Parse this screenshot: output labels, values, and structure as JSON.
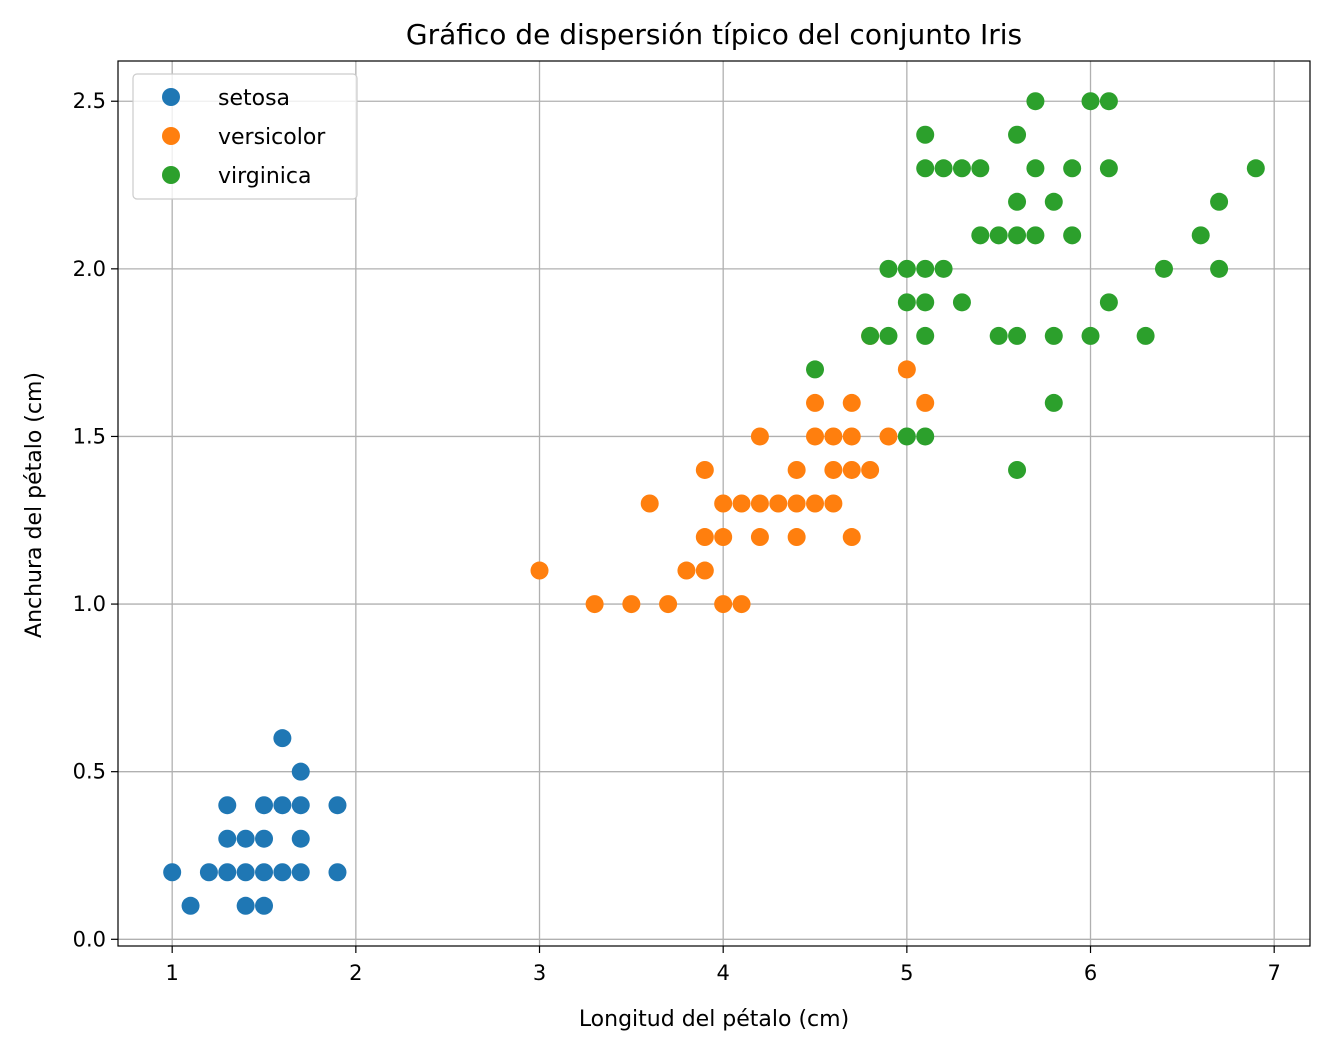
{
  "chart_data": {
    "type": "scatter",
    "title": "Gráfico de dispersión típico del conjunto Iris",
    "xlabel": "Longitud del pétalo (cm)",
    "ylabel": "Anchura del pétalo (cm)",
    "xlim": [
      0.705,
      7.195
    ],
    "ylim": [
      -0.02,
      2.62
    ],
    "xticks": [
      1,
      2,
      3,
      4,
      5,
      6,
      7
    ],
    "xtick_labels": [
      "1",
      "2",
      "3",
      "4",
      "5",
      "6",
      "7"
    ],
    "yticks": [
      0.0,
      0.5,
      1.0,
      1.5,
      2.0,
      2.5
    ],
    "ytick_labels": [
      "0.0",
      "0.5",
      "1.0",
      "1.5",
      "2.0",
      "2.5"
    ],
    "grid": true,
    "legend_position": "top-left",
    "series": [
      {
        "name": "setosa",
        "color": "#1f77b4",
        "points": [
          [
            1.0,
            0.2
          ],
          [
            1.1,
            0.1
          ],
          [
            1.2,
            0.2
          ],
          [
            1.3,
            0.2
          ],
          [
            1.3,
            0.3
          ],
          [
            1.3,
            0.4
          ],
          [
            1.4,
            0.1
          ],
          [
            1.4,
            0.2
          ],
          [
            1.4,
            0.3
          ],
          [
            1.5,
            0.1
          ],
          [
            1.5,
            0.2
          ],
          [
            1.5,
            0.3
          ],
          [
            1.5,
            0.4
          ],
          [
            1.6,
            0.2
          ],
          [
            1.6,
            0.4
          ],
          [
            1.6,
            0.6
          ],
          [
            1.7,
            0.2
          ],
          [
            1.7,
            0.3
          ],
          [
            1.7,
            0.4
          ],
          [
            1.7,
            0.5
          ],
          [
            1.9,
            0.2
          ],
          [
            1.9,
            0.4
          ]
        ]
      },
      {
        "name": "versicolor",
        "color": "#ff7f0e",
        "points": [
          [
            3.0,
            1.1
          ],
          [
            3.3,
            1.0
          ],
          [
            3.5,
            1.0
          ],
          [
            3.6,
            1.3
          ],
          [
            3.7,
            1.0
          ],
          [
            3.8,
            1.1
          ],
          [
            3.9,
            1.1
          ],
          [
            3.9,
            1.2
          ],
          [
            3.9,
            1.4
          ],
          [
            4.0,
            1.0
          ],
          [
            4.0,
            1.2
          ],
          [
            4.0,
            1.3
          ],
          [
            4.1,
            1.0
          ],
          [
            4.1,
            1.3
          ],
          [
            4.2,
            1.2
          ],
          [
            4.2,
            1.3
          ],
          [
            4.2,
            1.5
          ],
          [
            4.3,
            1.3
          ],
          [
            4.4,
            1.2
          ],
          [
            4.4,
            1.3
          ],
          [
            4.4,
            1.4
          ],
          [
            4.5,
            1.3
          ],
          [
            4.5,
            1.5
          ],
          [
            4.5,
            1.6
          ],
          [
            4.6,
            1.3
          ],
          [
            4.6,
            1.4
          ],
          [
            4.6,
            1.5
          ],
          [
            4.7,
            1.2
          ],
          [
            4.7,
            1.4
          ],
          [
            4.7,
            1.5
          ],
          [
            4.7,
            1.6
          ],
          [
            4.8,
            1.4
          ],
          [
            4.8,
            1.8
          ],
          [
            4.9,
            1.5
          ],
          [
            5.0,
            1.7
          ],
          [
            5.1,
            1.6
          ]
        ]
      },
      {
        "name": "virginica",
        "color": "#2ca02c",
        "points": [
          [
            4.5,
            1.7
          ],
          [
            4.8,
            1.8
          ],
          [
            4.9,
            1.8
          ],
          [
            4.9,
            2.0
          ],
          [
            5.0,
            1.5
          ],
          [
            5.0,
            1.9
          ],
          [
            5.0,
            2.0
          ],
          [
            5.1,
            1.5
          ],
          [
            5.1,
            1.8
          ],
          [
            5.1,
            1.9
          ],
          [
            5.1,
            2.0
          ],
          [
            5.1,
            2.3
          ],
          [
            5.1,
            2.4
          ],
          [
            5.2,
            2.0
          ],
          [
            5.2,
            2.3
          ],
          [
            5.3,
            1.9
          ],
          [
            5.3,
            2.3
          ],
          [
            5.4,
            2.1
          ],
          [
            5.4,
            2.3
          ],
          [
            5.5,
            1.8
          ],
          [
            5.5,
            2.1
          ],
          [
            5.6,
            1.4
          ],
          [
            5.6,
            1.8
          ],
          [
            5.6,
            2.1
          ],
          [
            5.6,
            2.2
          ],
          [
            5.6,
            2.4
          ],
          [
            5.7,
            2.1
          ],
          [
            5.7,
            2.3
          ],
          [
            5.7,
            2.5
          ],
          [
            5.8,
            1.6
          ],
          [
            5.8,
            1.8
          ],
          [
            5.8,
            2.2
          ],
          [
            5.9,
            2.1
          ],
          [
            5.9,
            2.3
          ],
          [
            6.0,
            1.8
          ],
          [
            6.0,
            2.5
          ],
          [
            6.1,
            1.9
          ],
          [
            6.1,
            2.3
          ],
          [
            6.1,
            2.5
          ],
          [
            6.3,
            1.8
          ],
          [
            6.4,
            2.0
          ],
          [
            6.6,
            2.1
          ],
          [
            6.7,
            2.0
          ],
          [
            6.7,
            2.2
          ],
          [
            6.9,
            2.3
          ]
        ]
      }
    ]
  }
}
